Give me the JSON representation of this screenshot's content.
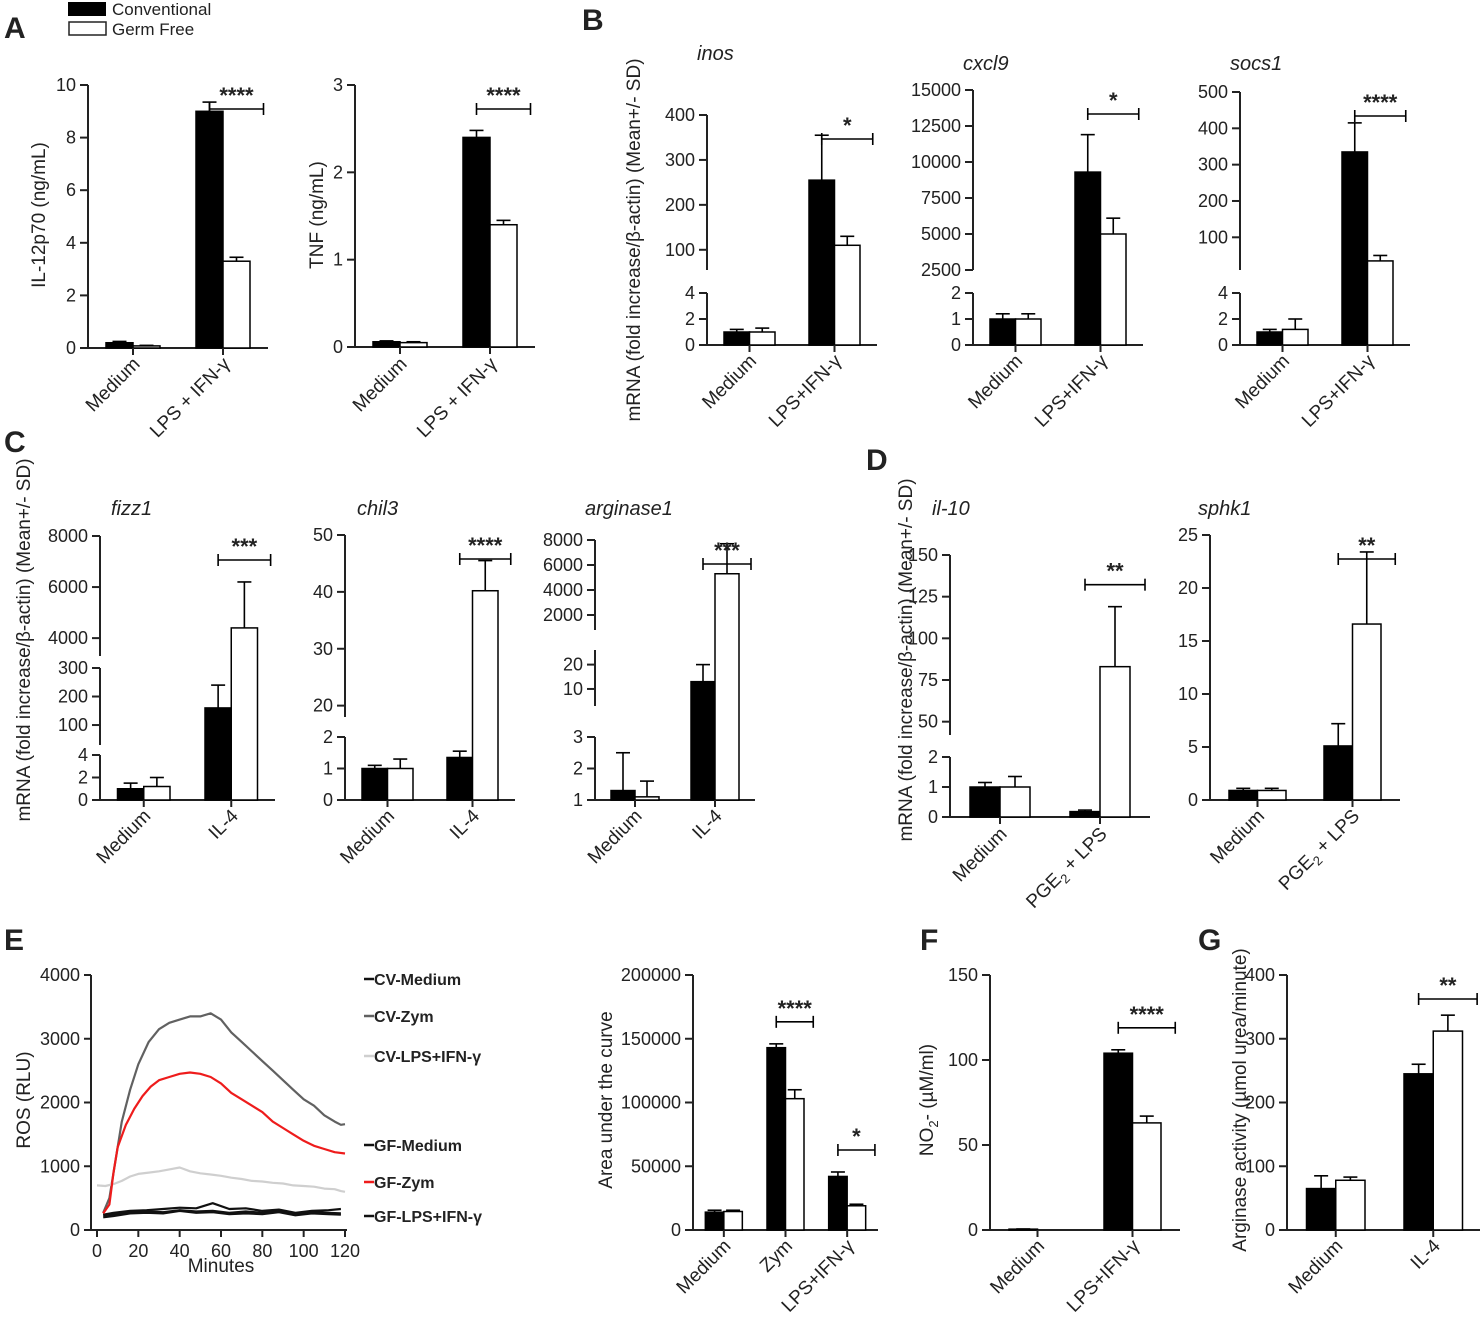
{
  "legend": {
    "entries": [
      {
        "name": "Conventional",
        "fill": "#000000"
      },
      {
        "name": "Germ Free",
        "fill": "#ffffff"
      }
    ]
  },
  "chart_data": [
    {
      "id": "A1",
      "panel": "A",
      "type": "bar",
      "title": "",
      "ylabel": "IL-12p70 (ng/mL)",
      "categories": [
        "Medium",
        "LPS + IFN-γ"
      ],
      "series": [
        {
          "name": "Conventional",
          "values": [
            0.2,
            9.0
          ],
          "errors": [
            0.05,
            0.35
          ]
        },
        {
          "name": "Germ Free",
          "values": [
            0.08,
            3.3
          ],
          "errors": [
            0.02,
            0.15
          ]
        }
      ],
      "ylim": [
        0,
        10
      ],
      "yticks": [
        0,
        2,
        4,
        6,
        8,
        10
      ],
      "significance": [
        {
          "category": 1,
          "label": "****"
        }
      ]
    },
    {
      "id": "A2",
      "panel": "",
      "type": "bar",
      "title": "",
      "ylabel": "TNF (ng/mL)",
      "categories": [
        "Medium",
        "LPS + IFN-γ"
      ],
      "series": [
        {
          "name": "Conventional",
          "values": [
            0.06,
            2.4
          ],
          "errors": [
            0.01,
            0.08
          ]
        },
        {
          "name": "Germ Free",
          "values": [
            0.05,
            1.4
          ],
          "errors": [
            0.01,
            0.05
          ]
        }
      ],
      "ylim": [
        0,
        3
      ],
      "yticks": [
        0,
        1,
        2,
        3
      ],
      "significance": [
        {
          "category": 1,
          "label": "****"
        }
      ]
    },
    {
      "id": "B1",
      "panel": "B",
      "type": "bar",
      "title": "inos",
      "ylabel": "mRNA (fold increase/β-actin) (Mean+/- SD)",
      "categories": [
        "Medium",
        "LPS+IFN-γ"
      ],
      "series": [
        {
          "name": "Conventional",
          "values": [
            1.0,
            255
          ],
          "errors": [
            0.2,
            100
          ]
        },
        {
          "name": "Germ Free",
          "values": [
            1.0,
            110
          ],
          "errors": [
            0.3,
            20
          ]
        }
      ],
      "ylim": [
        0,
        400
      ],
      "lower_ylim": [
        0,
        4
      ],
      "lower_ticks": [
        0,
        2,
        4
      ],
      "upper_ylim": [
        55,
        400
      ],
      "upper_ticks": [
        100,
        200,
        300,
        400
      ],
      "significance": [
        {
          "category": 1,
          "label": "*"
        }
      ]
    },
    {
      "id": "B2",
      "panel": "",
      "type": "bar",
      "title": "cxcl9",
      "ylabel": "",
      "categories": [
        "Medium",
        "LPS+IFN-γ"
      ],
      "series": [
        {
          "name": "Conventional",
          "values": [
            1.0,
            9300
          ],
          "errors": [
            0.2,
            2600
          ]
        },
        {
          "name": "Germ Free",
          "values": [
            1.0,
            5000
          ],
          "errors": [
            0.2,
            1100
          ]
        }
      ],
      "ylim": [
        0,
        15000
      ],
      "lower_ylim": [
        0,
        2
      ],
      "lower_ticks": [
        0,
        1,
        2
      ],
      "upper_ylim": [
        2500,
        15000
      ],
      "upper_ticks": [
        2500,
        5000,
        7500,
        10000,
        12500,
        15000
      ],
      "significance": [
        {
          "category": 1,
          "label": "*"
        }
      ]
    },
    {
      "id": "B3",
      "panel": "",
      "type": "bar",
      "title": "socs1",
      "ylabel": "",
      "categories": [
        "Medium",
        "LPS+IFN-γ"
      ],
      "series": [
        {
          "name": "Conventional",
          "values": [
            1.0,
            335
          ],
          "errors": [
            0.2,
            80
          ]
        },
        {
          "name": "Germ Free",
          "values": [
            1.2,
            35
          ],
          "errors": [
            0.8,
            15
          ]
        }
      ],
      "ylim": [
        0,
        500
      ],
      "lower_ylim": [
        0,
        4
      ],
      "lower_ticks": [
        0,
        2,
        4
      ],
      "upper_ylim": [
        10,
        500
      ],
      "upper_ticks": [
        100,
        200,
        300,
        400,
        500
      ],
      "significance": [
        {
          "category": 1,
          "label": "****"
        }
      ]
    },
    {
      "id": "C1",
      "panel": "C",
      "type": "bar",
      "title": "fizz1",
      "ylabel": "mRNA (fold increase/β-actin) (Mean+/- SD)",
      "categories": [
        "Medium",
        "IL-4"
      ],
      "series": [
        {
          "name": "Conventional",
          "values": [
            1.0,
            160
          ],
          "errors": [
            0.5,
            80
          ]
        },
        {
          "name": "Germ Free",
          "values": [
            1.2,
            4400
          ],
          "errors": [
            0.8,
            1800
          ]
        }
      ],
      "ylim": [
        0,
        8000
      ],
      "significance": [
        {
          "category": 1,
          "label": "***"
        }
      ],
      "segments": [
        {
          "ylim": [
            0,
            4
          ],
          "ticks": [
            0,
            2,
            4
          ]
        },
        {
          "ylim": [
            30,
            300
          ],
          "ticks": [
            100,
            200,
            300
          ]
        },
        {
          "ylim": [
            3300,
            8000
          ],
          "ticks": [
            4000,
            6000,
            8000
          ]
        }
      ]
    },
    {
      "id": "C2",
      "panel": "",
      "type": "bar",
      "title": "chil3",
      "ylabel": "",
      "categories": [
        "Medium",
        "IL-4"
      ],
      "series": [
        {
          "name": "Conventional",
          "values": [
            1.0,
            1.35
          ],
          "errors": [
            0.1,
            0.2
          ]
        },
        {
          "name": "Germ Free",
          "values": [
            1.0,
            40.2
          ],
          "errors": [
            0.3,
            5.3
          ]
        }
      ],
      "ylim": [
        0,
        50
      ],
      "significance": [
        {
          "category": 1,
          "label": "****"
        }
      ],
      "segments": [
        {
          "ylim": [
            0,
            2
          ],
          "ticks": [
            0,
            1,
            2
          ]
        },
        {
          "ylim": [
            18,
            50
          ],
          "ticks": [
            20,
            30,
            40,
            50
          ]
        }
      ]
    },
    {
      "id": "C3",
      "panel": "",
      "type": "bar",
      "title": "arginase1",
      "ylabel": "",
      "categories": [
        "Medium",
        "IL-4"
      ],
      "series": [
        {
          "name": "Conventional",
          "values": [
            1.3,
            13
          ],
          "errors": [
            1.2,
            7
          ]
        },
        {
          "name": "Germ Free",
          "values": [
            1.1,
            5300
          ],
          "errors": [
            0.5,
            2400
          ]
        }
      ],
      "ylim": [
        1,
        8000
      ],
      "significance": [
        {
          "category": 1,
          "label": "***"
        }
      ],
      "segments": [
        {
          "ylim": [
            1,
            3
          ],
          "ticks": [
            1,
            2,
            3
          ]
        },
        {
          "ylim": [
            3,
            26
          ],
          "ticks": [
            10,
            20
          ]
        },
        {
          "ylim": [
            800,
            8000
          ],
          "ticks": [
            2000,
            4000,
            6000,
            8000
          ]
        }
      ]
    },
    {
      "id": "D1",
      "panel": "D",
      "type": "bar",
      "title": "il-10",
      "ylabel": "mRNA (fold increase/β-actin) (Mean+/- SD)",
      "categories": [
        "Medium",
        "PGE2 + LPS"
      ],
      "series": [
        {
          "name": "Conventional",
          "values": [
            1.0,
            0.18
          ],
          "errors": [
            0.15,
            0.05
          ]
        },
        {
          "name": "Germ Free",
          "values": [
            1.0,
            83
          ],
          "errors": [
            0.35,
            36
          ]
        }
      ],
      "ylim": [
        0,
        150
      ],
      "lower_ylim": [
        0,
        2
      ],
      "lower_ticks": [
        0,
        1,
        2
      ],
      "upper_ylim": [
        42,
        150
      ],
      "upper_ticks": [
        50,
        75,
        100,
        125,
        150
      ],
      "significance": [
        {
          "category": 1,
          "label": "**"
        }
      ]
    },
    {
      "id": "D2",
      "panel": "",
      "type": "bar",
      "title": "sphk1",
      "ylabel": "",
      "categories": [
        "Medium",
        "PGE2 + LPS"
      ],
      "series": [
        {
          "name": "Conventional",
          "values": [
            0.9,
            5.1
          ],
          "errors": [
            0.2,
            2.1
          ]
        },
        {
          "name": "Germ Free",
          "values": [
            0.9,
            16.6
          ],
          "errors": [
            0.2,
            6.8
          ]
        }
      ],
      "ylim": [
        0,
        25
      ],
      "yticks": [
        0,
        5,
        10,
        15,
        20,
        25
      ],
      "significance": [
        {
          "category": 1,
          "label": "**"
        }
      ]
    },
    {
      "id": "E1",
      "panel": "E",
      "type": "line",
      "title": "",
      "xlabel": "Minutes",
      "ylabel": "ROS (RLU)",
      "xlim": [
        0,
        120
      ],
      "xticks": [
        0,
        20,
        40,
        60,
        80,
        100,
        120
      ],
      "ylim": [
        0,
        4000
      ],
      "yticks": [
        0,
        1000,
        2000,
        3000,
        4000
      ],
      "series": [
        {
          "name": "CV-Medium",
          "color": "#111111",
          "x": [
            3,
            8,
            16,
            24,
            32,
            40,
            48,
            56,
            64,
            72,
            80,
            88,
            96,
            104,
            112,
            118
          ],
          "y": [
            240,
            270,
            300,
            310,
            330,
            350,
            340,
            420,
            330,
            340,
            300,
            320,
            270,
            300,
            310,
            330
          ]
        },
        {
          "name": "CV-Zym",
          "color": "#616161",
          "x": [
            3,
            6,
            9,
            12,
            16,
            20,
            25,
            30,
            35,
            40,
            45,
            50,
            55,
            60,
            65,
            70,
            75,
            80,
            85,
            90,
            95,
            100,
            105,
            110,
            115,
            118,
            120
          ],
          "y": [
            270,
            500,
            1100,
            1700,
            2200,
            2600,
            2950,
            3150,
            3250,
            3300,
            3350,
            3350,
            3400,
            3300,
            3100,
            2950,
            2800,
            2650,
            2500,
            2350,
            2200,
            2050,
            1950,
            1800,
            1700,
            1650,
            1660
          ]
        },
        {
          "name": "CV-LPS+IFN-γ",
          "color": "#cfcfcf",
          "x": [
            0,
            4,
            8,
            12,
            16,
            20,
            25,
            30,
            35,
            40,
            45,
            50,
            55,
            60,
            65,
            70,
            75,
            80,
            85,
            90,
            95,
            100,
            105,
            110,
            115,
            118,
            120
          ],
          "y": [
            700,
            690,
            720,
            770,
            840,
            880,
            900,
            920,
            950,
            980,
            920,
            890,
            870,
            850,
            820,
            800,
            770,
            760,
            740,
            730,
            700,
            690,
            680,
            650,
            640,
            610,
            600
          ]
        },
        {
          "name": "GF-Medium",
          "color": "#111111",
          "x": [
            3,
            8,
            16,
            24,
            32,
            40,
            48,
            56,
            64,
            72,
            80,
            88,
            96,
            104,
            112,
            118
          ],
          "y": [
            200,
            220,
            260,
            270,
            260,
            300,
            270,
            280,
            250,
            260,
            250,
            280,
            230,
            260,
            250,
            240
          ]
        },
        {
          "name": "GF-Zym",
          "color": "#ee1c1c",
          "x": [
            3,
            6,
            8,
            10,
            14,
            18,
            22,
            26,
            30,
            35,
            40,
            45,
            50,
            55,
            60,
            65,
            70,
            75,
            80,
            85,
            90,
            95,
            100,
            105,
            110,
            115,
            120
          ],
          "y": [
            260,
            400,
            900,
            1300,
            1650,
            1900,
            2100,
            2250,
            2350,
            2400,
            2450,
            2470,
            2450,
            2400,
            2300,
            2150,
            2050,
            1950,
            1850,
            1700,
            1600,
            1500,
            1400,
            1320,
            1270,
            1220,
            1200
          ]
        },
        {
          "name": "GF-LPS+IFN-γ",
          "color": "#111111",
          "x": [
            3,
            8,
            16,
            24,
            32,
            40,
            48,
            56,
            64,
            72,
            80,
            88,
            96,
            104,
            112,
            118
          ],
          "y": [
            230,
            250,
            280,
            290,
            280,
            310,
            290,
            300,
            270,
            290,
            270,
            300,
            260,
            280,
            270,
            260
          ]
        }
      ]
    },
    {
      "id": "E2",
      "panel": "",
      "type": "bar",
      "title": "",
      "ylabel": "Area under the curve",
      "categories": [
        "Medium",
        "Zym",
        "LPS+IFN-γ"
      ],
      "series": [
        {
          "name": "Conventional",
          "values": [
            14000,
            143000,
            42000
          ],
          "errors": [
            1500,
            3000,
            3500
          ]
        },
        {
          "name": "Germ Free",
          "values": [
            14500,
            103000,
            19000
          ],
          "errors": [
            1000,
            7000,
            1200
          ]
        }
      ],
      "ylim": [
        0,
        200000
      ],
      "yticks": [
        0,
        50000,
        100000,
        150000,
        200000
      ],
      "significance": [
        {
          "category": 1,
          "label": "****"
        },
        {
          "category": 2,
          "label": "*"
        }
      ]
    },
    {
      "id": "F",
      "panel": "F",
      "type": "bar",
      "title": "",
      "ylabel": "NO2- (µM/ml)",
      "categories": [
        "Medium",
        "LPS+IFN-γ"
      ],
      "series": [
        {
          "name": "Conventional",
          "values": [
            0.5,
            104
          ],
          "errors": [
            0.1,
            2
          ]
        },
        {
          "name": "Germ Free",
          "values": [
            0,
            63
          ],
          "errors": [
            0,
            4
          ]
        }
      ],
      "ylim": [
        0,
        150
      ],
      "yticks": [
        0,
        50,
        100,
        150
      ],
      "significance": [
        {
          "category": 1,
          "label": "****"
        }
      ]
    },
    {
      "id": "G",
      "panel": "G",
      "type": "bar",
      "title": "",
      "ylabel": "Arginase activity (µmol urea/minute)",
      "categories": [
        "Medium",
        "IL-4"
      ],
      "series": [
        {
          "name": "Conventional",
          "values": [
            65,
            245
          ],
          "errors": [
            20,
            15
          ]
        },
        {
          "name": "Germ Free",
          "values": [
            78,
            312
          ],
          "errors": [
            5,
            25
          ]
        }
      ],
      "ylim": [
        0,
        400
      ],
      "yticks": [
        0,
        100,
        200,
        300,
        400
      ],
      "significance": [
        {
          "category": 1,
          "label": "**"
        }
      ]
    }
  ]
}
